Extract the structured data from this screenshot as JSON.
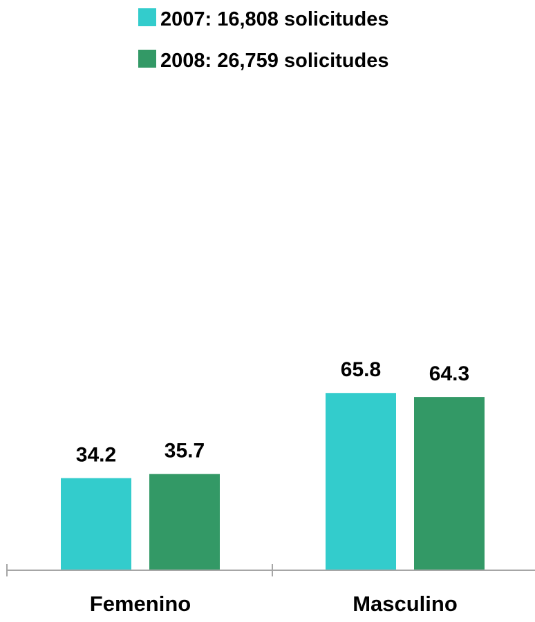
{
  "chart_data": {
    "type": "bar",
    "categories": [
      "Femenino",
      "Masculino"
    ],
    "series": [
      {
        "name": "2007: 16,808 solicitudes",
        "values": [
          34.2,
          65.8
        ],
        "color": "#33CCCC"
      },
      {
        "name": "2008: 26,759 solicitudes",
        "values": [
          35.7,
          64.3
        ],
        "color": "#339966"
      }
    ],
    "ylim": [
      0,
      100
    ],
    "grid": false,
    "legend_position": "top",
    "data_labels": true,
    "axis_color": "#A6A6A6"
  }
}
